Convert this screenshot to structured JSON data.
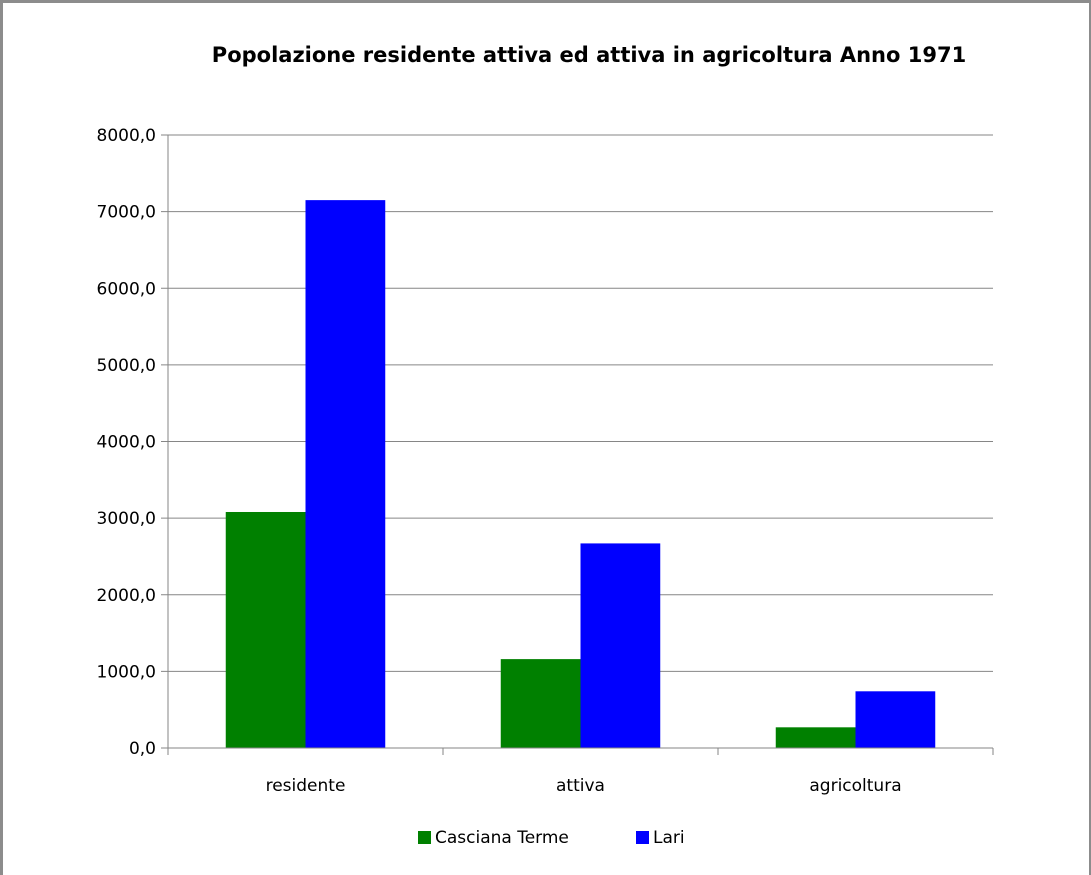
{
  "chart_data": {
    "type": "bar",
    "title": "Popolazione  residente attiva ed attiva in agricoltura Anno 1971",
    "categories": [
      "residente",
      "attiva",
      "agricoltura"
    ],
    "series": [
      {
        "name": "Casciana Terme",
        "values": [
          3080,
          1160,
          270
        ],
        "color": "#008000"
      },
      {
        "name": "Lari",
        "values": [
          7150,
          2670,
          740
        ],
        "color": "#0000ff"
      }
    ],
    "xlabel": "",
    "ylabel": "",
    "ylim": [
      0,
      8000
    ],
    "yticks": [
      "0,0",
      "1000,0",
      "2000,0",
      "3000,0",
      "4000,0",
      "5000,0",
      "6000,0",
      "7000,0",
      "8000,0"
    ],
    "grid": "horizontal",
    "legend": "bottom"
  }
}
